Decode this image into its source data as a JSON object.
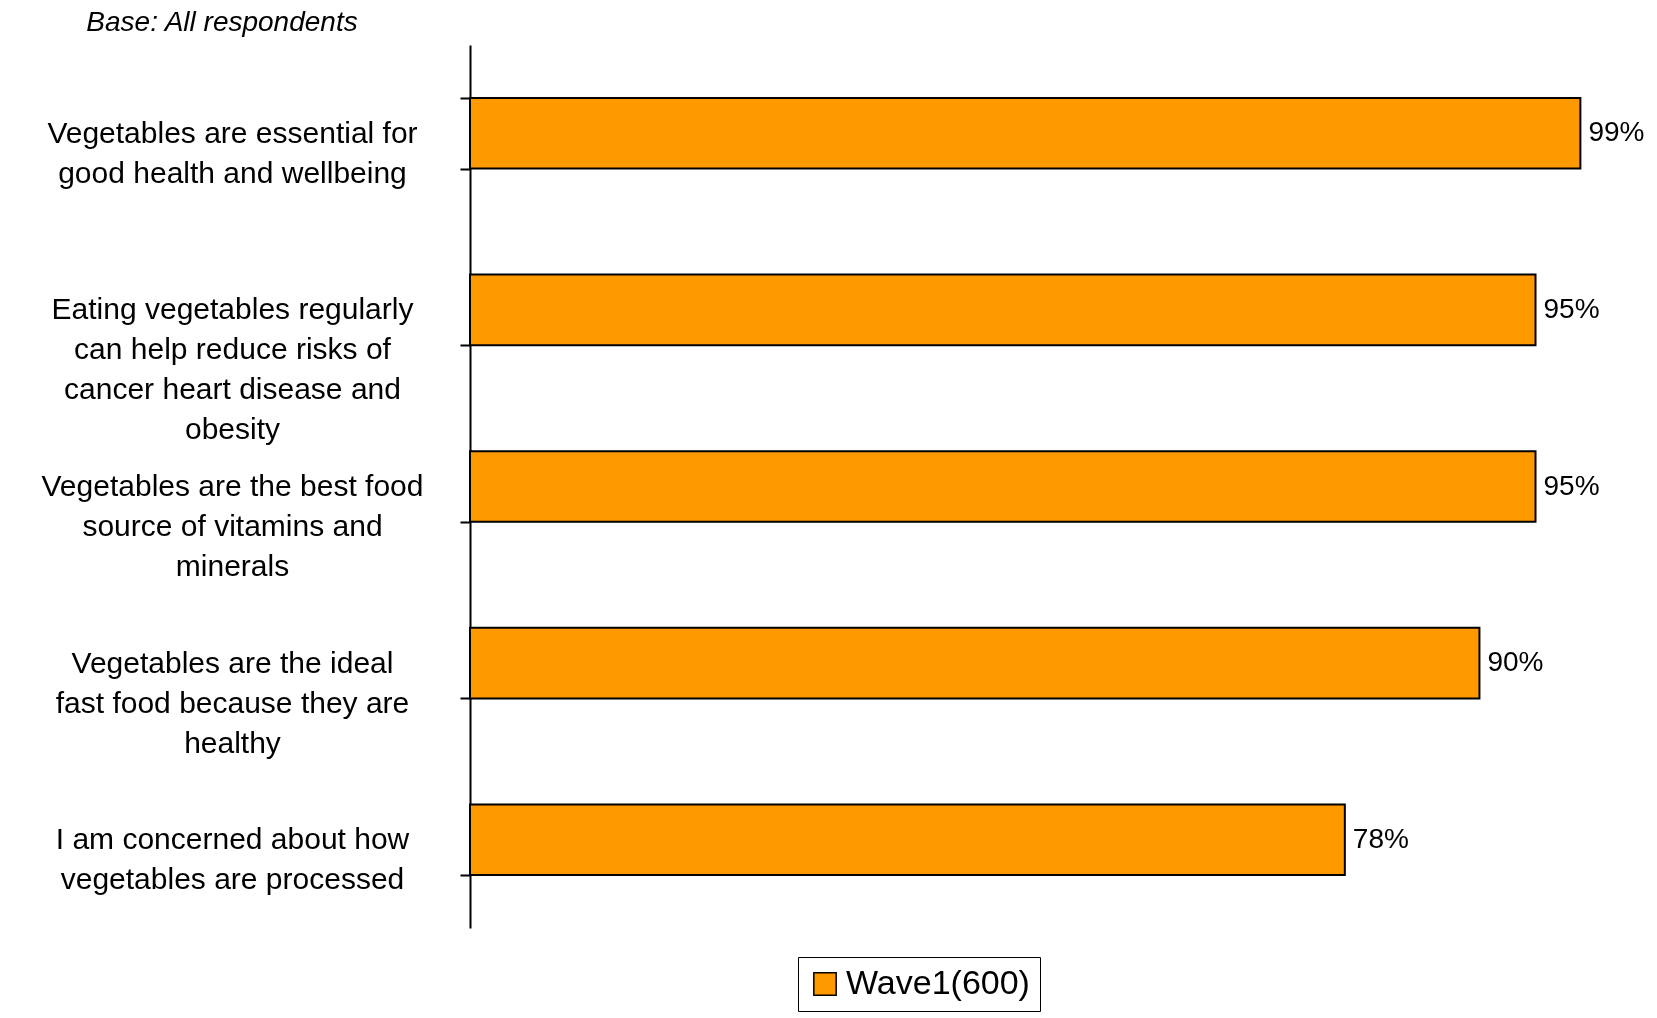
{
  "chart_data": {
    "type": "bar",
    "orientation": "horizontal",
    "annotations": [
      "Base: All respondents"
    ],
    "categories": [
      "Vegetables are essential for good health and wellbeing",
      "Eating vegetables regularly can help reduce risks of cancer heart disease and obesity",
      "Vegetables are the best food source of vitamins and minerals",
      "Vegetables are the ideal fast food because they are healthy",
      "I am concerned about how vegetables are processed"
    ],
    "series": [
      {
        "name": "Wave1(600)",
        "color": "#ff9900",
        "values": [
          99,
          95,
          95,
          90,
          78
        ],
        "value_labels": [
          "99%",
          "95%",
          "95%",
          "90%",
          "78%"
        ]
      }
    ],
    "legend": "bottom",
    "grid": false
  }
}
